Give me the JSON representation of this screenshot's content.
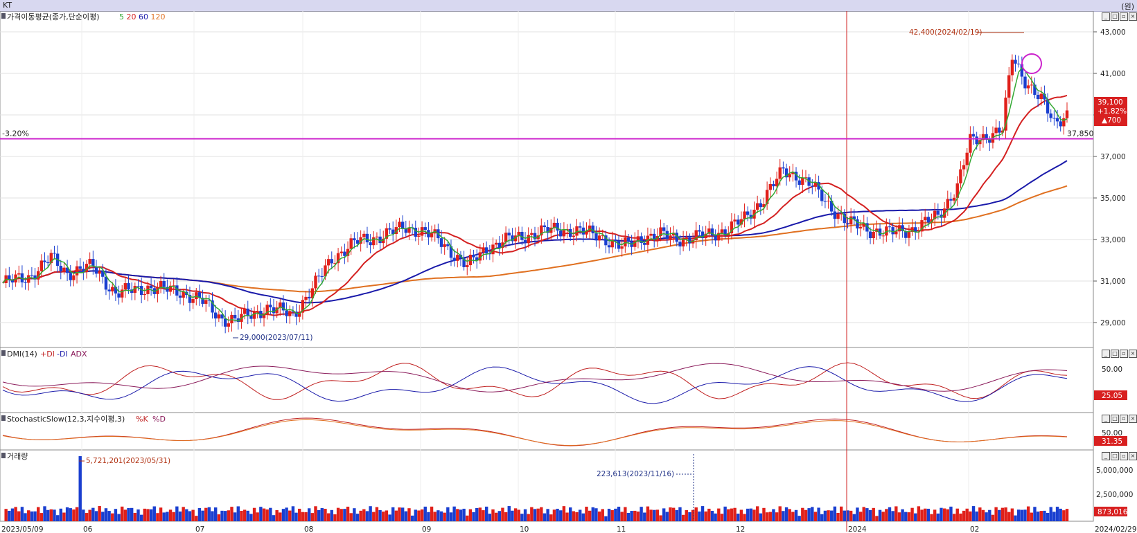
{
  "window": {
    "title": "KT",
    "unit": "(원)"
  },
  "price_panel": {
    "label": "가격이동평균(종가,단순이평)",
    "ma_labels": [
      {
        "text": "5",
        "color": "#33a833"
      },
      {
        "text": "20",
        "color": "#d42020"
      },
      {
        "text": "60",
        "color": "#1a1aaa"
      },
      {
        "text": "120",
        "color": "#e07020"
      }
    ],
    "y_ticks": [
      "43,000",
      "41,000",
      "39,000",
      "37,000",
      "35,000",
      "33,000",
      "31,000",
      "29,000"
    ],
    "y_values": [
      43000,
      41000,
      39000,
      37000,
      35000,
      33000,
      31000,
      29000
    ],
    "ylim": [
      28000,
      43600
    ],
    "ref_line_label": "-3.20%",
    "ref_line_value_label": "37,850",
    "ref_line_value": 37850,
    "high_annotation": "42,400(2024/02/19)",
    "low_annotation": "29,000(2023/07/11)",
    "current_box": [
      "39,100",
      "+1.82%",
      "▲700"
    ]
  },
  "dmi_panel": {
    "label": "DMI(14)",
    "legend": [
      "+DI",
      "-DI",
      "ADX"
    ],
    "y_tick": "50.00",
    "current": "25.05"
  },
  "stoch_panel": {
    "label": "StochasticSlow(12,3,지수이평,3)",
    "legend": [
      "%K",
      "%D"
    ],
    "y_tick": "50.00",
    "current": "31.35"
  },
  "volume_panel": {
    "label": "거래량",
    "y_ticks": [
      "5,000,000",
      "2,500,000"
    ],
    "max_annotation": "5,721,201(2023/05/31)",
    "min_annotation": "223,613(2023/11/16)",
    "current": "873,016"
  },
  "x_axis": {
    "start_label": "2023/05/09",
    "month_labels": [
      "06",
      "07",
      "08",
      "09",
      "10",
      "11",
      "12",
      "2024",
      "02"
    ],
    "end_label": "2024/02/29"
  },
  "colors": {
    "up": "#e0201a",
    "down": "#1a3fd0",
    "ref_line": "#cc22cc",
    "ma5": "#33a833",
    "ma20": "#d42020",
    "ma60": "#1a1aaa",
    "ma120": "#e07020"
  },
  "chart_data": {
    "type": "candlestick",
    "title": "KT",
    "ylabel": "(원)",
    "x": [
      "2023-05-09",
      "2023-05-31",
      "2023-07-11",
      "2023-08-01",
      "2023-11-16",
      "2024-01-02",
      "2024-02-19",
      "2024-02-29"
    ],
    "series": [
      {
        "name": "종가",
        "values_keypoints": [
          30900,
          31500,
          29100,
          30300,
          33600,
          33800,
          42000,
          39100
        ]
      }
    ],
    "high": {
      "value": 42400,
      "date": "2024-02-19"
    },
    "low": {
      "value": 29000,
      "date": "2023-07-11"
    },
    "ylim": [
      28000,
      43600
    ]
  }
}
